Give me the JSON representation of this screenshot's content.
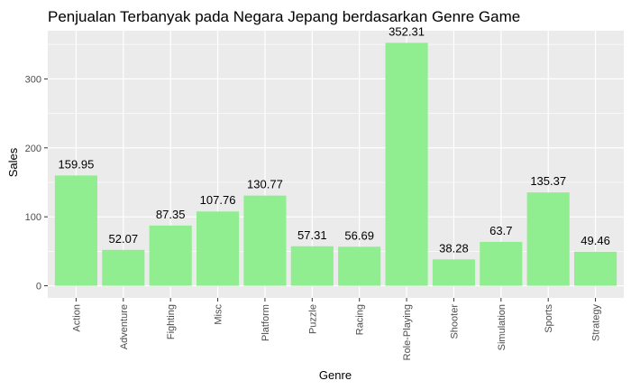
{
  "chart_data": {
    "type": "bar",
    "title": "Penjualan Terbanyak pada Negara Jepang berdasarkan Genre Game",
    "xlabel": "Genre",
    "ylabel": "Sales",
    "categories": [
      "Action",
      "Adventure",
      "Fighting",
      "Misc",
      "Platform",
      "Puzzle",
      "Racing",
      "Role-Playing",
      "Shooter",
      "Simulation",
      "Sports",
      "Strategy"
    ],
    "values": [
      159.95,
      52.07,
      87.35,
      107.76,
      130.77,
      57.31,
      56.69,
      352.31,
      38.28,
      63.7,
      135.37,
      49.46
    ],
    "value_labels": [
      "159.95",
      "52.07",
      "87.35",
      "107.76",
      "130.77",
      "57.31",
      "56.69",
      "352.31",
      "38.28",
      "63.7",
      "135.37",
      "49.46"
    ],
    "yticks": [
      0,
      100,
      200,
      300
    ],
    "ylim": [
      -17.6,
      369.9
    ],
    "grid": true,
    "colors": {
      "bar": "#90EE90",
      "panel": "#EBEBEB",
      "grid": "#FFFFFF"
    }
  }
}
